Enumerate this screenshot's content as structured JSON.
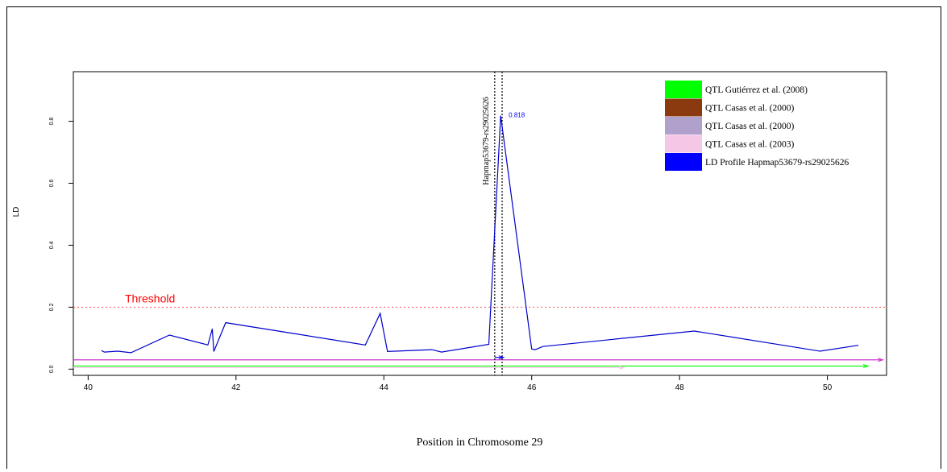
{
  "chart_data": {
    "type": "line",
    "xlabel": "Position in Chromosome 29",
    "ylabel": "LD",
    "xlim": [
      39.8,
      50.8
    ],
    "ylim": [
      -0.02,
      0.96
    ],
    "xticks": [
      40,
      42,
      44,
      46,
      48,
      50
    ],
    "yticks": [
      0.0,
      0.2,
      0.4,
      0.6,
      0.8
    ],
    "xtick_labels": [
      "40",
      "42",
      "44",
      "46",
      "48",
      "50"
    ],
    "ytick_labels": [
      "0.0",
      "0.2",
      "0.4",
      "0.6",
      "0.8"
    ],
    "threshold": {
      "value": 0.2,
      "label": "Threshold",
      "color": "#ff5555"
    },
    "peak_label": {
      "text": "0.818",
      "x": 45.58,
      "y": 0.818
    },
    "marker": {
      "label": "Hapmap53679-rs29025626",
      "x": [
        45.5,
        45.6
      ]
    },
    "legend": {
      "position": "top-right",
      "entries": [
        {
          "label": "QTL Gutiérrez et al. (2008)",
          "color": "#00ff00"
        },
        {
          "label": "QTL Casas et al. (2000)",
          "color": "#8b3a0f"
        },
        {
          "label": "QTL Casas et al. (2000)",
          "color": "#b0a0cc"
        },
        {
          "label": "QTL Casas et al. (2003)",
          "color": "#f5c6e6"
        },
        {
          "label": "LD Profile Hapmap53679-rs29025626",
          "color": "#0000ff"
        }
      ]
    },
    "series": [
      {
        "name": "LD Profile Hapmap53679-rs29025626",
        "color": "#0000cc",
        "x": [
          40.18,
          40.22,
          40.4,
          40.58,
          41.1,
          41.62,
          41.68,
          41.7,
          41.86,
          43.75,
          43.95,
          44.05,
          44.65,
          44.78,
          45.42,
          45.58,
          46.0,
          46.05,
          46.15,
          48.2,
          49.9,
          50.42
        ],
        "y": [
          0.06,
          0.055,
          0.058,
          0.053,
          0.11,
          0.078,
          0.13,
          0.057,
          0.15,
          0.078,
          0.18,
          0.057,
          0.063,
          0.055,
          0.08,
          0.818,
          0.065,
          0.063,
          0.073,
          0.123,
          0.058,
          0.077
        ]
      }
    ],
    "qtl_segments": [
      {
        "color": "#cc33cc",
        "x": [
          39.8,
          50.75
        ],
        "y": 0.03
      },
      {
        "color": "#00ff00",
        "x": [
          39.8,
          50.55
        ],
        "y": 0.01
      },
      {
        "color": "#f5c6e6",
        "x": [
          39.8,
          47.25
        ],
        "y": 0.005
      },
      {
        "color": "#0000ff",
        "x": [
          45.5,
          45.62
        ],
        "y": 0.038
      }
    ]
  }
}
